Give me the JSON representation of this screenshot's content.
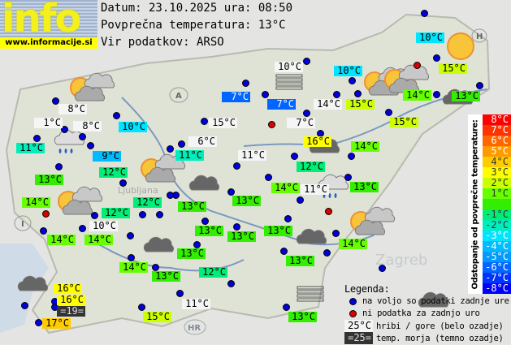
{
  "logo": {
    "text": "info",
    "url": "www.informacije.si"
  },
  "header": {
    "date_line": "Datum: 23.10.2025 ura: 08:50",
    "avg_line": "Povprečna temperatura: 13°C",
    "source_line": "Vir podatkov: ARSO"
  },
  "average_temperature": 13,
  "labels": [
    {
      "text": "10°C",
      "kind": "valley"
    },
    {
      "text": "15°C",
      "kind": "valley"
    },
    {
      "text": "10°C",
      "kind": "valley"
    },
    {
      "text": "14°C",
      "kind": "mountain"
    },
    {
      "text": "15°C",
      "kind": "valley"
    },
    {
      "text": "14°C",
      "kind": "valley"
    },
    {
      "text": "13°C",
      "kind": "valley"
    },
    {
      "text": "15°C",
      "kind": "valley"
    },
    {
      "text": "10°C",
      "kind": "mountain"
    },
    {
      "text": "7°C",
      "kind": "valley"
    },
    {
      "text": "7°C",
      "kind": "valley"
    },
    {
      "text": "7°C",
      "kind": "mountain"
    },
    {
      "text": "15°C",
      "kind": "mountain"
    },
    {
      "text": "6°C",
      "kind": "mountain"
    },
    {
      "text": "11°C",
      "kind": "valley"
    },
    {
      "text": "16°C",
      "kind": "valley"
    },
    {
      "text": "11°C",
      "kind": "mountain"
    },
    {
      "text": "12°C",
      "kind": "valley"
    },
    {
      "text": "14°C",
      "kind": "valley"
    },
    {
      "text": "14°C",
      "kind": "valley"
    },
    {
      "text": "11°C",
      "kind": "mountain"
    },
    {
      "text": "13°C",
      "kind": "valley"
    },
    {
      "text": "13°C",
      "kind": "valley"
    },
    {
      "text": "13°C",
      "kind": "valley"
    },
    {
      "text": "13°C",
      "kind": "valley"
    },
    {
      "text": "13°C",
      "kind": "valley"
    },
    {
      "text": "13°C",
      "kind": "valley"
    },
    {
      "text": "13°C",
      "kind": "valley"
    },
    {
      "text": "14°C",
      "kind": "valley"
    },
    {
      "text": "13°C",
      "kind": "valley"
    },
    {
      "text": "14°C",
      "kind": "valley"
    },
    {
      "text": "13°C",
      "kind": "valley"
    },
    {
      "text": "12°C",
      "kind": "valley"
    },
    {
      "text": "11°C",
      "kind": "mountain"
    },
    {
      "text": "15°C",
      "kind": "valley"
    },
    {
      "text": "13°C",
      "kind": "valley"
    },
    {
      "text": "16°C",
      "kind": "valley"
    },
    {
      "text": "16°C",
      "kind": "valley"
    },
    {
      "text": "=19=",
      "kind": "sea"
    },
    {
      "text": "17°C",
      "kind": "valley"
    },
    {
      "text": "14°C",
      "kind": "valley"
    },
    {
      "text": "14°C",
      "kind": "valley"
    },
    {
      "text": "10°C",
      "kind": "mountain"
    },
    {
      "text": "12°C",
      "kind": "valley"
    },
    {
      "text": "12°C",
      "kind": "valley"
    },
    {
      "text": "14°C",
      "kind": "valley"
    },
    {
      "text": "13°C",
      "kind": "valley"
    },
    {
      "text": "12°C",
      "kind": "valley"
    },
    {
      "text": "9°C",
      "kind": "valley"
    },
    {
      "text": "11°C",
      "kind": "valley"
    },
    {
      "text": "1°C",
      "kind": "mountain"
    },
    {
      "text": "8°C",
      "kind": "mountain"
    },
    {
      "text": "8°C",
      "kind": "mountain"
    },
    {
      "text": "10°C",
      "kind": "valley"
    }
  ],
  "stations": [
    "ok",
    "missing",
    "ok",
    "ok",
    "ok",
    "ok",
    "ok",
    "ok",
    "ok",
    "ok",
    "ok",
    "ok",
    "ok",
    "missing",
    "ok",
    "ok",
    "ok",
    "ok",
    "ok",
    "ok",
    "ok",
    "ok",
    "ok",
    "ok",
    "ok",
    "ok",
    "missing",
    "ok",
    "ok",
    "ok",
    "ok",
    "ok",
    "ok",
    "ok",
    "ok",
    "ok",
    "ok",
    "ok",
    "ok",
    "ok",
    "ok",
    "ok",
    "ok",
    "ok",
    "ok",
    "ok",
    "ok",
    "ok",
    "missing",
    "ok",
    "ok",
    "ok",
    "ok",
    "ok",
    "ok",
    "ok",
    "ok",
    "ok",
    "ok",
    "ok",
    "ok",
    "ok"
  ],
  "weather_icons": [
    "sun",
    "partly-cloudy",
    "partly-cloudy",
    "fog",
    "partly-cloudy",
    "rain",
    "partly-cloudy",
    "overcast",
    "overcast",
    "rain",
    "overcast",
    "partly-cloudy",
    "overcast",
    "overcast",
    "fog",
    "overcast",
    "partly-cloudy",
    "overcast"
  ],
  "scale": {
    "title": "Odstopanje od povprečne temperature:",
    "rows": [
      {
        "label": "8°C",
        "color": "#ff0000"
      },
      {
        "label": "7°C",
        "color": "#ff3300"
      },
      {
        "label": "6°C",
        "color": "#ff6600"
      },
      {
        "label": "5°C",
        "color": "#ff9900"
      },
      {
        "label": "4°C",
        "color": "#ffcc00"
      },
      {
        "label": "3°C",
        "color": "#ffff00"
      },
      {
        "label": "2°C",
        "color": "#ccff00"
      },
      {
        "label": "1°C",
        "color": "#66ff00"
      },
      {
        "label": "",
        "color": "#33ee00"
      },
      {
        "label": "-1°C",
        "color": "#00ee77"
      },
      {
        "label": "-2°C",
        "color": "#00eebb"
      },
      {
        "label": "-3°C",
        "color": "#00e5ff"
      },
      {
        "label": "-4°C",
        "color": "#00bbff"
      },
      {
        "label": "-5°C",
        "color": "#0099ff"
      },
      {
        "label": "-6°C",
        "color": "#0066ff"
      },
      {
        "label": "-7°C",
        "color": "#0033ff"
      },
      {
        "label": "-8°C",
        "color": "#0000ff"
      }
    ]
  },
  "legend": {
    "title": "Legenda:",
    "available": "na voljo so podatki zadnje ure",
    "missing": "ni podatka za zadnjo uro",
    "mountain_sample": "25°C",
    "mountain_text": "hribi / gore (belo ozadje)",
    "sea_sample": "=25=",
    "sea_text": "temp. morja (temno ozadje)"
  },
  "map_labels": {
    "zagreb": "Zagreb",
    "ljubljana": "Ljubljana",
    "hr": "HR",
    "a": "A",
    "h": "H",
    "i": "I"
  }
}
